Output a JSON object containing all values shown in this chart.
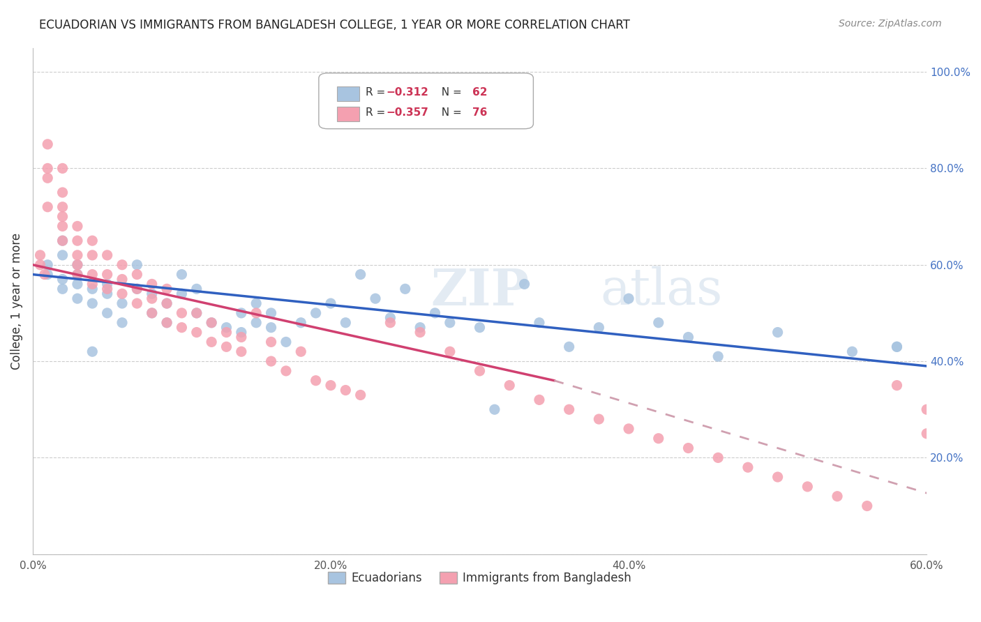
{
  "title": "ECUADORIAN VS IMMIGRANTS FROM BANGLADESH COLLEGE, 1 YEAR OR MORE CORRELATION CHART",
  "source": "Source: ZipAtlas.com",
  "xlabel": "",
  "ylabel": "College, 1 year or more",
  "xlim": [
    0.0,
    0.6
  ],
  "ylim": [
    0.0,
    1.05
  ],
  "xticks": [
    0.0,
    0.1,
    0.2,
    0.3,
    0.4,
    0.5,
    0.6
  ],
  "xticklabels": [
    "0.0%",
    "",
    "20.0%",
    "",
    "40.0%",
    "",
    "60.0%"
  ],
  "yticks": [
    0.0,
    0.2,
    0.4,
    0.6,
    0.8,
    1.0
  ],
  "yticklabels": [
    "",
    "20.0%",
    "40.0%",
    "60.0%",
    "80.0%",
    "100.0%"
  ],
  "blue_color": "#a8c4e0",
  "pink_color": "#f4a0b0",
  "blue_line_color": "#3060c0",
  "pink_line_color": "#d04070",
  "pink_dash_color": "#d0a0b0",
  "watermark": "ZIPatlas",
  "legend_r_blue": "R = −0.312",
  "legend_n_blue": "N = 62",
  "legend_r_pink": "R = −0.357",
  "legend_n_pink": "N = 76",
  "blue_scatter_x": [
    0.01,
    0.01,
    0.02,
    0.02,
    0.02,
    0.02,
    0.03,
    0.03,
    0.03,
    0.03,
    0.04,
    0.04,
    0.04,
    0.05,
    0.05,
    0.05,
    0.06,
    0.06,
    0.07,
    0.07,
    0.08,
    0.08,
    0.09,
    0.09,
    0.1,
    0.1,
    0.11,
    0.11,
    0.12,
    0.13,
    0.14,
    0.14,
    0.15,
    0.15,
    0.16,
    0.16,
    0.17,
    0.18,
    0.19,
    0.2,
    0.21,
    0.22,
    0.23,
    0.24,
    0.25,
    0.26,
    0.27,
    0.28,
    0.3,
    0.31,
    0.33,
    0.34,
    0.36,
    0.38,
    0.4,
    0.42,
    0.44,
    0.46,
    0.5,
    0.55,
    0.58,
    0.58
  ],
  "blue_scatter_y": [
    0.58,
    0.6,
    0.55,
    0.57,
    0.62,
    0.65,
    0.53,
    0.56,
    0.6,
    0.58,
    0.52,
    0.55,
    0.42,
    0.5,
    0.54,
    0.56,
    0.48,
    0.52,
    0.6,
    0.55,
    0.5,
    0.54,
    0.48,
    0.52,
    0.54,
    0.58,
    0.5,
    0.55,
    0.48,
    0.47,
    0.5,
    0.46,
    0.48,
    0.52,
    0.47,
    0.5,
    0.44,
    0.48,
    0.5,
    0.52,
    0.48,
    0.58,
    0.53,
    0.49,
    0.55,
    0.47,
    0.5,
    0.48,
    0.47,
    0.3,
    0.56,
    0.48,
    0.43,
    0.47,
    0.53,
    0.48,
    0.45,
    0.41,
    0.46,
    0.42,
    0.43,
    0.43
  ],
  "pink_scatter_x": [
    0.005,
    0.005,
    0.008,
    0.01,
    0.01,
    0.01,
    0.01,
    0.02,
    0.02,
    0.02,
    0.02,
    0.02,
    0.02,
    0.03,
    0.03,
    0.03,
    0.03,
    0.03,
    0.04,
    0.04,
    0.04,
    0.04,
    0.05,
    0.05,
    0.05,
    0.06,
    0.06,
    0.06,
    0.07,
    0.07,
    0.07,
    0.08,
    0.08,
    0.08,
    0.09,
    0.09,
    0.09,
    0.1,
    0.1,
    0.11,
    0.11,
    0.12,
    0.12,
    0.13,
    0.13,
    0.14,
    0.14,
    0.15,
    0.16,
    0.16,
    0.17,
    0.18,
    0.19,
    0.2,
    0.21,
    0.22,
    0.24,
    0.26,
    0.28,
    0.3,
    0.32,
    0.34,
    0.36,
    0.38,
    0.4,
    0.42,
    0.44,
    0.46,
    0.48,
    0.5,
    0.52,
    0.54,
    0.56,
    0.58,
    0.6,
    0.6
  ],
  "pink_scatter_y": [
    0.6,
    0.62,
    0.58,
    0.72,
    0.78,
    0.8,
    0.85,
    0.65,
    0.68,
    0.7,
    0.72,
    0.75,
    0.8,
    0.58,
    0.6,
    0.62,
    0.65,
    0.68,
    0.56,
    0.58,
    0.62,
    0.65,
    0.55,
    0.58,
    0.62,
    0.54,
    0.57,
    0.6,
    0.52,
    0.55,
    0.58,
    0.5,
    0.53,
    0.56,
    0.48,
    0.52,
    0.55,
    0.47,
    0.5,
    0.46,
    0.5,
    0.44,
    0.48,
    0.43,
    0.46,
    0.42,
    0.45,
    0.5,
    0.4,
    0.44,
    0.38,
    0.42,
    0.36,
    0.35,
    0.34,
    0.33,
    0.48,
    0.46,
    0.42,
    0.38,
    0.35,
    0.32,
    0.3,
    0.28,
    0.26,
    0.24,
    0.22,
    0.2,
    0.18,
    0.16,
    0.14,
    0.12,
    0.1,
    0.35,
    0.25,
    0.3
  ]
}
